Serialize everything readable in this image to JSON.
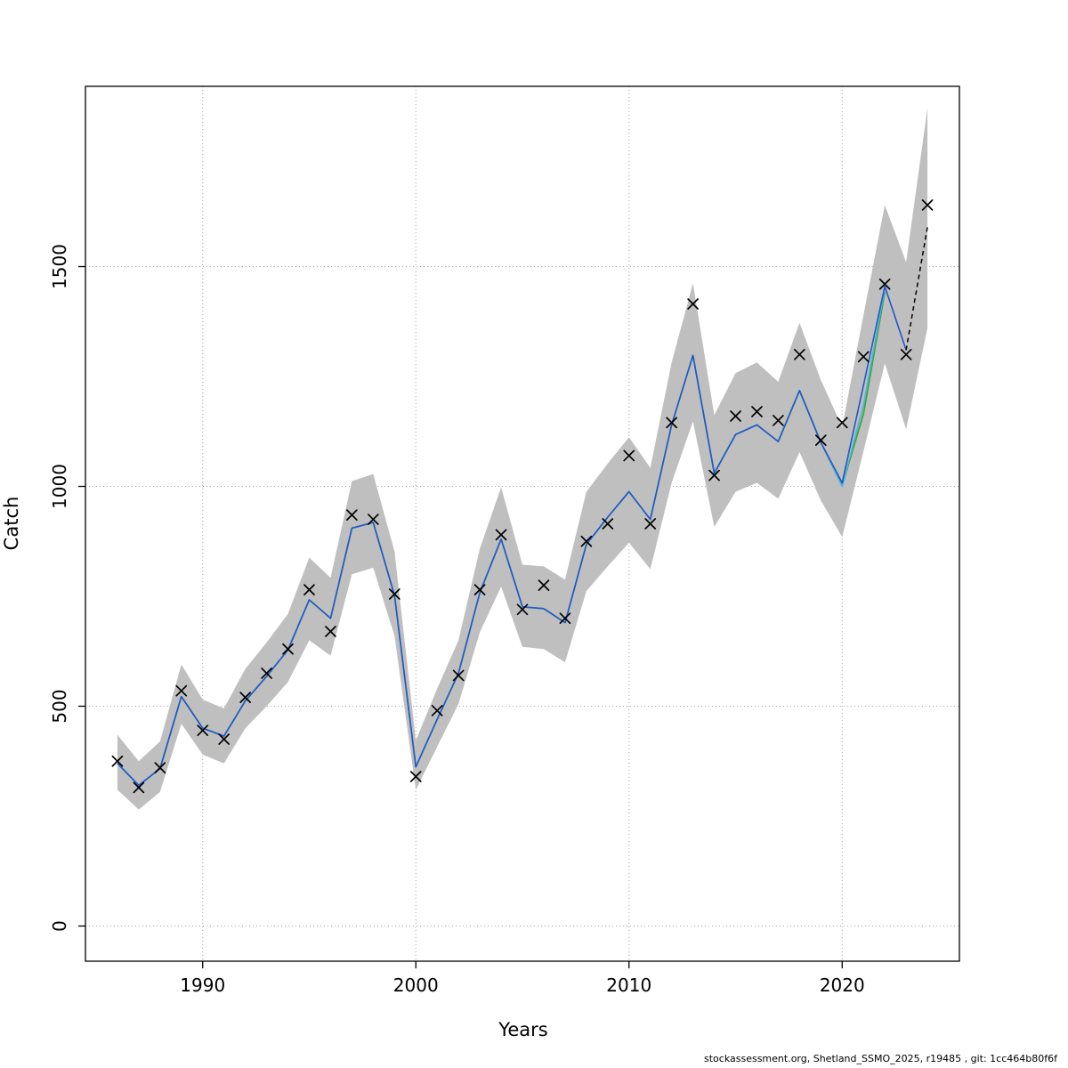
{
  "footer": {
    "text": "stockassessment.org, Shetland_SSMO_2025, r19485 , git: 1cc464b80f6f"
  },
  "chart_data": {
    "type": "line",
    "title": "",
    "xlabel": "Years",
    "ylabel": "Catch",
    "xlim": [
      1984.5,
      2025.5
    ],
    "ylim": [
      -80,
      1910
    ],
    "x_ticks": [
      1990,
      2000,
      2010,
      2020
    ],
    "y_ticks": [
      0,
      500,
      1000,
      1500
    ],
    "grid": "dotted",
    "grid_color": "#a6a6a6",
    "band": {
      "name": "confidence-band",
      "color": "#bfbfbf",
      "years": [
        1986,
        1987,
        1988,
        1989,
        1990,
        1991,
        1992,
        1993,
        1994,
        1995,
        1996,
        1997,
        1998,
        1999,
        2000,
        2001,
        2002,
        2003,
        2004,
        2005,
        2006,
        2007,
        2008,
        2009,
        2010,
        2011,
        2012,
        2013,
        2014,
        2015,
        2016,
        2017,
        2018,
        2019,
        2020,
        2021,
        2022,
        2023,
        2024
      ],
      "lower": [
        310,
        265,
        305,
        460,
        390,
        370,
        450,
        500,
        555,
        650,
        615,
        800,
        815,
        660,
        310,
        408,
        505,
        668,
        772,
        635,
        630,
        600,
        762,
        818,
        872,
        812,
        1008,
        1148,
        908,
        988,
        1008,
        972,
        1078,
        968,
        885,
        1080,
        1280,
        1130,
        1360
      ],
      "upper": [
        435,
        375,
        420,
        595,
        515,
        495,
        585,
        645,
        710,
        838,
        792,
        1012,
        1028,
        852,
        422,
        540,
        650,
        858,
        998,
        822,
        818,
        788,
        988,
        1052,
        1112,
        1042,
        1282,
        1462,
        1162,
        1258,
        1282,
        1238,
        1372,
        1242,
        1135,
        1390,
        1640,
        1510,
        1860
      ]
    },
    "series": [
      {
        "name": "fit-line-green",
        "color": "#3aa33a",
        "width": 1.7,
        "dash": "",
        "years": [
          1986,
          1987,
          1988,
          1989,
          1990,
          1991,
          1992,
          1993,
          1994,
          1995,
          1996,
          1997,
          1998,
          1999,
          2000,
          2001,
          2002,
          2003,
          2004,
          2005,
          2006,
          2007,
          2008,
          2009,
          2010,
          2011,
          2012,
          2013,
          2014,
          2015,
          2016,
          2017,
          2018,
          2019,
          2020,
          2021,
          2022
        ],
        "values": [
          370,
          320,
          358,
          522,
          450,
          432,
          512,
          568,
          628,
          742,
          700,
          905,
          918,
          752,
          362,
          470,
          575,
          758,
          880,
          726,
          722,
          690,
          868,
          930,
          988,
          925,
          1140,
          1298,
          1030,
          1118,
          1140,
          1102,
          1218,
          1100,
          1002,
          1165,
          1442
        ]
      },
      {
        "name": "fit-line-cyan",
        "color": "#46b8d8",
        "width": 1.6,
        "dash": "",
        "years": [
          1986,
          1987,
          1988,
          1989,
          1990,
          1991,
          1992,
          1993,
          1994,
          1995,
          1996,
          1997,
          1998,
          1999,
          2000,
          2001,
          2002,
          2003,
          2004,
          2005,
          2006,
          2007,
          2008,
          2009,
          2010,
          2011,
          2012,
          2013,
          2014,
          2015,
          2016,
          2017,
          2018,
          2019,
          2020,
          2021,
          2022
        ],
        "values": [
          370,
          320,
          358,
          522,
          450,
          432,
          512,
          568,
          628,
          742,
          700,
          905,
          918,
          752,
          362,
          470,
          575,
          758,
          880,
          726,
          722,
          690,
          868,
          930,
          988,
          925,
          1140,
          1298,
          1030,
          1118,
          1140,
          1102,
          1218,
          1100,
          1000,
          1185,
          1450
        ]
      },
      {
        "name": "fit-line-blue",
        "color": "#2456c8",
        "width": 1.6,
        "dash": "",
        "years": [
          1986,
          1987,
          1988,
          1989,
          1990,
          1991,
          1992,
          1993,
          1994,
          1995,
          1996,
          1997,
          1998,
          1999,
          2000,
          2001,
          2002,
          2003,
          2004,
          2005,
          2006,
          2007,
          2008,
          2009,
          2010,
          2011,
          2012,
          2013,
          2014,
          2015,
          2016,
          2017,
          2018,
          2019,
          2020,
          2021,
          2022,
          2023
        ],
        "values": [
          370,
          320,
          358,
          522,
          450,
          432,
          512,
          568,
          628,
          742,
          700,
          905,
          918,
          752,
          362,
          470,
          575,
          758,
          880,
          726,
          722,
          690,
          868,
          930,
          988,
          925,
          1140,
          1298,
          1030,
          1118,
          1140,
          1102,
          1218,
          1100,
          1008,
          1230,
          1455,
          1310
        ]
      },
      {
        "name": "forecast-line-dashed",
        "color": "#000000",
        "width": 1.5,
        "dash": "5 4",
        "years": [
          2023,
          2024
        ],
        "values": [
          1310,
          1590
        ]
      }
    ],
    "observations": {
      "name": "catch-observations",
      "marker": "x",
      "color": "#000000",
      "years": [
        1986,
        1987,
        1988,
        1989,
        1990,
        1991,
        1992,
        1993,
        1994,
        1995,
        1996,
        1997,
        1998,
        1999,
        2000,
        2001,
        2002,
        2003,
        2004,
        2005,
        2006,
        2007,
        2008,
        2009,
        2010,
        2011,
        2012,
        2013,
        2014,
        2015,
        2016,
        2017,
        2018,
        2019,
        2020,
        2021,
        2022,
        2023,
        2024
      ],
      "values": [
        375,
        315,
        360,
        535,
        445,
        425,
        520,
        575,
        630,
        765,
        670,
        935,
        925,
        755,
        340,
        490,
        570,
        765,
        890,
        720,
        775,
        700,
        875,
        915,
        1070,
        915,
        1145,
        1415,
        1025,
        1160,
        1170,
        1150,
        1300,
        1105,
        1145,
        1295,
        1460,
        1300,
        1640
      ]
    }
  }
}
